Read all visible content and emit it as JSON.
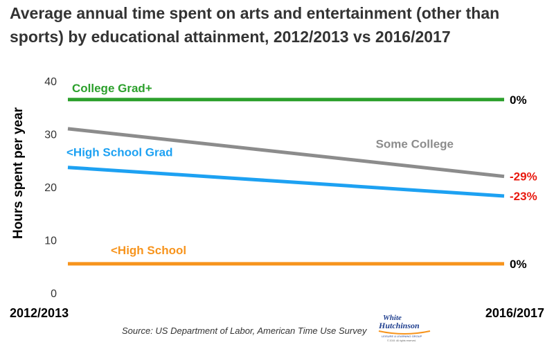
{
  "title": "Average annual time spent on arts and entertainment (other than sports) by educational attainment, 2012/2013 vs 2016/2017",
  "source": "Source: US Department of Labor, American Time Use Survey",
  "logo": {
    "line1": "White",
    "line2": "Hutchinson",
    "tagline": "LEISURE & LEARNING GROUP",
    "copyright": "© 2019. All rights reserved."
  },
  "chart_data": {
    "type": "line",
    "x": [
      "2012/2013",
      "2016/2017"
    ],
    "ylabel": "Hours spent per year",
    "ylim": [
      0,
      40
    ],
    "yticks": [
      0,
      10,
      20,
      30,
      40
    ],
    "grid": false,
    "series": [
      {
        "name": "College Grad+",
        "values": [
          36.5,
          36.5
        ],
        "color": "#2ca02c",
        "change": "0%",
        "change_color": "#000000"
      },
      {
        "name": "Some College",
        "values": [
          31.0,
          22.0
        ],
        "color": "#8c8c8c",
        "change": "-29%",
        "change_color": "#e8190f"
      },
      {
        "name": "<High School Grad",
        "values": [
          23.7,
          18.3
        ],
        "color": "#1da1f2",
        "change": "-23%",
        "change_color": "#e8190f"
      },
      {
        "name": "<High School",
        "values": [
          5.5,
          5.5
        ],
        "color": "#f7941d",
        "change": "0%",
        "change_color": "#000000"
      }
    ]
  }
}
